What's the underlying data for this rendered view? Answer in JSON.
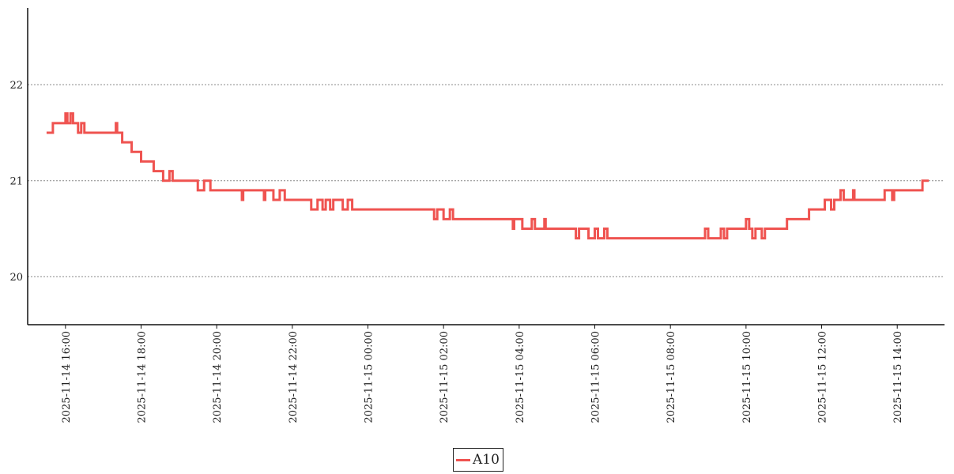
{
  "chart_data": {
    "type": "line",
    "title": "",
    "xlabel": "",
    "ylabel": "",
    "line_style": "step",
    "grid": "horizontal-dotted",
    "legend_position": "bottom-center",
    "ylim": [
      19.5,
      22.8
    ],
    "xlim": [
      "2025-11-14 15:00",
      "2025-11-15 15:15"
    ],
    "yticks": [
      20,
      21,
      22
    ],
    "xticks": [
      "2025-11-14 16:00",
      "2025-11-14 18:00",
      "2025-11-14 20:00",
      "2025-11-14 22:00",
      "2025-11-15 00:00",
      "2025-11-15 02:00",
      "2025-11-15 04:00",
      "2025-11-15 06:00",
      "2025-11-15 08:00",
      "2025-11-15 10:00",
      "2025-11-15 12:00",
      "2025-11-15 14:00"
    ],
    "series": [
      {
        "name": "A10",
        "color": "#ef5350",
        "points": [
          [
            "2025-11-14 15:30",
            21.5
          ],
          [
            "2025-11-14 15:40",
            21.6
          ],
          [
            "2025-11-14 16:00",
            21.7
          ],
          [
            "2025-11-14 16:03",
            21.6
          ],
          [
            "2025-11-14 16:08",
            21.7
          ],
          [
            "2025-11-14 16:12",
            21.6
          ],
          [
            "2025-11-14 16:20",
            21.5
          ],
          [
            "2025-11-14 16:25",
            21.6
          ],
          [
            "2025-11-14 16:30",
            21.5
          ],
          [
            "2025-11-14 17:20",
            21.6
          ],
          [
            "2025-11-14 17:22",
            21.5
          ],
          [
            "2025-11-14 17:30",
            21.4
          ],
          [
            "2025-11-14 17:45",
            21.3
          ],
          [
            "2025-11-14 18:00",
            21.2
          ],
          [
            "2025-11-14 18:20",
            21.1
          ],
          [
            "2025-11-14 18:35",
            21.0
          ],
          [
            "2025-11-14 18:45",
            21.1
          ],
          [
            "2025-11-14 18:50",
            21.0
          ],
          [
            "2025-11-14 19:30",
            20.9
          ],
          [
            "2025-11-14 19:40",
            21.0
          ],
          [
            "2025-11-14 19:50",
            20.9
          ],
          [
            "2025-11-14 20:40",
            20.8
          ],
          [
            "2025-11-14 20:42",
            20.9
          ],
          [
            "2025-11-14 21:15",
            20.8
          ],
          [
            "2025-11-14 21:17",
            20.9
          ],
          [
            "2025-11-14 21:30",
            20.8
          ],
          [
            "2025-11-14 21:40",
            20.9
          ],
          [
            "2025-11-14 21:48",
            20.8
          ],
          [
            "2025-11-14 22:30",
            20.7
          ],
          [
            "2025-11-14 22:40",
            20.8
          ],
          [
            "2025-11-14 22:48",
            20.7
          ],
          [
            "2025-11-14 22:53",
            20.8
          ],
          [
            "2025-11-14 23:00",
            20.7
          ],
          [
            "2025-11-14 23:05",
            20.8
          ],
          [
            "2025-11-14 23:20",
            20.7
          ],
          [
            "2025-11-14 23:28",
            20.8
          ],
          [
            "2025-11-14 23:35",
            20.7
          ],
          [
            "2025-11-15 01:45",
            20.6
          ],
          [
            "2025-11-15 01:50",
            20.7
          ],
          [
            "2025-11-15 02:00",
            20.6
          ],
          [
            "2025-11-15 02:10",
            20.7
          ],
          [
            "2025-11-15 02:15",
            20.6
          ],
          [
            "2025-11-15 03:50",
            20.5
          ],
          [
            "2025-11-15 03:52",
            20.6
          ],
          [
            "2025-11-15 04:05",
            20.5
          ],
          [
            "2025-11-15 04:20",
            20.6
          ],
          [
            "2025-11-15 04:25",
            20.5
          ],
          [
            "2025-11-15 04:40",
            20.6
          ],
          [
            "2025-11-15 04:42",
            20.5
          ],
          [
            "2025-11-15 05:30",
            20.4
          ],
          [
            "2025-11-15 05:35",
            20.5
          ],
          [
            "2025-11-15 05:50",
            20.4
          ],
          [
            "2025-11-15 06:00",
            20.5
          ],
          [
            "2025-11-15 06:05",
            20.4
          ],
          [
            "2025-11-15 06:15",
            20.5
          ],
          [
            "2025-11-15 06:20",
            20.4
          ],
          [
            "2025-11-15 08:55",
            20.5
          ],
          [
            "2025-11-15 09:00",
            20.4
          ],
          [
            "2025-11-15 09:20",
            20.5
          ],
          [
            "2025-11-15 09:25",
            20.4
          ],
          [
            "2025-11-15 09:30",
            20.5
          ],
          [
            "2025-11-15 10:00",
            20.6
          ],
          [
            "2025-11-15 10:05",
            20.5
          ],
          [
            "2025-11-15 10:10",
            20.4
          ],
          [
            "2025-11-15 10:15",
            20.5
          ],
          [
            "2025-11-15 10:25",
            20.4
          ],
          [
            "2025-11-15 10:30",
            20.5
          ],
          [
            "2025-11-15 11:05",
            20.6
          ],
          [
            "2025-11-15 11:40",
            20.7
          ],
          [
            "2025-11-15 12:05",
            20.8
          ],
          [
            "2025-11-15 12:15",
            20.7
          ],
          [
            "2025-11-15 12:20",
            20.8
          ],
          [
            "2025-11-15 12:30",
            20.9
          ],
          [
            "2025-11-15 12:35",
            20.8
          ],
          [
            "2025-11-15 12:50",
            20.9
          ],
          [
            "2025-11-15 12:52",
            20.8
          ],
          [
            "2025-11-15 13:40",
            20.9
          ],
          [
            "2025-11-15 13:52",
            20.8
          ],
          [
            "2025-11-15 13:55",
            20.9
          ],
          [
            "2025-11-15 14:40",
            21.0
          ],
          [
            "2025-11-15 14:50",
            21.0
          ]
        ]
      }
    ]
  }
}
